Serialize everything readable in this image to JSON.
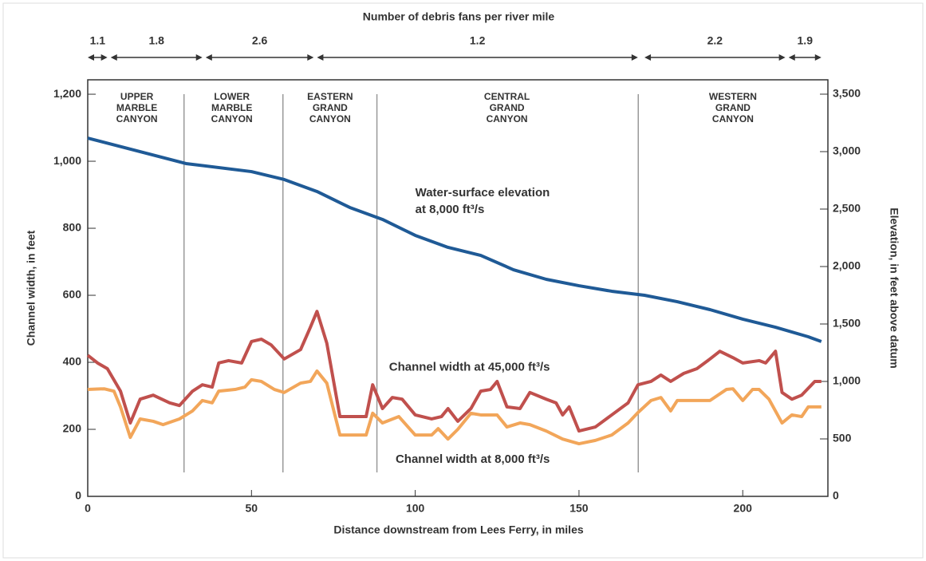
{
  "chart_data": {
    "type": "line",
    "top_title": "Number of debris fans per river mile",
    "debris_segments": [
      {
        "value": 1.1,
        "start": 0,
        "end": 6
      },
      {
        "value": 1.8,
        "start": 7,
        "end": 35
      },
      {
        "value": 2.6,
        "start": 36,
        "end": 69
      },
      {
        "value": 1.2,
        "start": 70,
        "end": 168
      },
      {
        "value": 2.2,
        "start": 170,
        "end": 213
      },
      {
        "value": 1.9,
        "start": 214,
        "end": 224
      }
    ],
    "reaches": [
      {
        "lines": [
          "UPPER",
          "MARBLE",
          "CANYON"
        ],
        "center": 15
      },
      {
        "lines": [
          "LOWER",
          "MARBLE",
          "CANYON"
        ],
        "center": 44
      },
      {
        "lines": [
          "EASTERN",
          "GRAND",
          "CANYON"
        ],
        "center": 74
      },
      {
        "lines": [
          "CENTRAL",
          "GRAND",
          "CANYON"
        ],
        "center": 128
      },
      {
        "lines": [
          "WESTERN",
          "GRAND",
          "CANYON"
        ],
        "center": 197
      }
    ],
    "reach_boundaries": [
      29.4,
      59.6,
      88.3,
      168.1
    ],
    "xlabel": "Distance downstream from Lees Ferry, in miles",
    "ylabel": "Channel width, in feet",
    "y2label": "Elevation, in feet above datum",
    "xlim": [
      0,
      226
    ],
    "xticks": [
      0,
      50,
      100,
      150,
      200
    ],
    "ylim": [
      0,
      1243
    ],
    "yticks": [
      0,
      200,
      400,
      600,
      800,
      {
        "value": 1000,
        "label": "1,000"
      },
      {
        "value": 1200,
        "label": "1,200"
      }
    ],
    "y2lim": [
      0,
      3625
    ],
    "y2ticks": [
      0,
      500,
      {
        "value": 1000,
        "label": "1,000"
      },
      {
        "value": 1500,
        "label": "1,500"
      },
      {
        "value": 2000,
        "label": "2,000"
      },
      {
        "value": 2500,
        "label": "2,500"
      },
      {
        "value": 3000,
        "label": "3,000"
      },
      {
        "value": 3500,
        "label": "3,500"
      }
    ],
    "annotations": [
      {
        "text": "Water-surface elevation",
        "x": 100,
        "y": 905
      },
      {
        "text": "at 8,000 ft³/s",
        "x": 100,
        "y": 855
      },
      {
        "text": "Channel width at 45,000 ft³/s",
        "x": 92,
        "y": 385
      },
      {
        "text": "Channel width at 8,000 ft³/s",
        "x": 94,
        "y": 110
      }
    ],
    "series": [
      {
        "name": "Water-surface elevation at 8,000 ft³/s",
        "color": "#1f5a96",
        "axis": "y2",
        "x": [
          0,
          30,
          50,
          60,
          70,
          80,
          90,
          100,
          110,
          120,
          130,
          140,
          150,
          160,
          170,
          180,
          190,
          200,
          210,
          220,
          224
        ],
        "values": [
          3118,
          2896,
          2826,
          2757,
          2653,
          2514,
          2410,
          2271,
          2167,
          2097,
          1972,
          1889,
          1833,
          1785,
          1750,
          1694,
          1625,
          1542,
          1472,
          1389,
          1347
        ]
      },
      {
        "name": "Channel width at 45,000 ft³/s",
        "color": "#c0504d",
        "x": [
          0,
          3,
          6,
          10,
          13,
          16,
          20,
          25,
          28,
          32,
          35,
          38,
          40,
          43,
          47,
          50,
          53,
          56,
          60,
          65,
          68,
          70,
          73,
          77,
          80,
          85,
          87,
          90,
          93,
          96,
          100,
          105,
          108,
          110,
          113,
          117,
          120,
          123,
          125,
          128,
          132,
          135,
          140,
          143,
          145,
          147,
          150,
          155,
          160,
          165,
          168,
          172,
          175,
          178,
          182,
          186,
          190,
          193,
          197,
          200,
          205,
          207,
          210,
          212,
          215,
          218,
          222,
          224
        ],
        "values": [
          421,
          398,
          381,
          314,
          219,
          290,
          302,
          279,
          271,
          314,
          333,
          326,
          398,
          405,
          398,
          462,
          469,
          452,
          410,
          438,
          505,
          552,
          457,
          238,
          238,
          238,
          333,
          262,
          295,
          290,
          243,
          231,
          238,
          262,
          224,
          262,
          314,
          319,
          343,
          267,
          262,
          310,
          290,
          279,
          243,
          267,
          195,
          207,
          243,
          279,
          333,
          343,
          362,
          343,
          367,
          381,
          410,
          433,
          414,
          398,
          405,
          398,
          433,
          310,
          290,
          302,
          343,
          343
        ]
      },
      {
        "name": "Channel width at 8,000 ft³/s",
        "color": "#f2a65a",
        "x": [
          0,
          5,
          8,
          10,
          13,
          16,
          20,
          23,
          28,
          32,
          35,
          38,
          40,
          45,
          48,
          50,
          53,
          57,
          60,
          65,
          68,
          70,
          73,
          77,
          80,
          85,
          87,
          90,
          95,
          100,
          105,
          107,
          110,
          113,
          117,
          120,
          125,
          128,
          132,
          135,
          140,
          145,
          150,
          155,
          160,
          165,
          168,
          172,
          175,
          178,
          180,
          185,
          190,
          195,
          197,
          200,
          203,
          205,
          208,
          212,
          215,
          218,
          220,
          224
        ],
        "values": [
          319,
          321,
          314,
          267,
          176,
          231,
          224,
          214,
          231,
          255,
          286,
          279,
          314,
          319,
          326,
          348,
          343,
          319,
          310,
          338,
          343,
          374,
          338,
          183,
          183,
          183,
          248,
          219,
          238,
          183,
          183,
          202,
          171,
          200,
          248,
          243,
          243,
          207,
          219,
          214,
          195,
          171,
          157,
          167,
          183,
          219,
          250,
          286,
          295,
          255,
          286,
          286,
          286,
          319,
          321,
          286,
          319,
          319,
          290,
          219,
          243,
          238,
          267,
          267
        ]
      }
    ]
  }
}
